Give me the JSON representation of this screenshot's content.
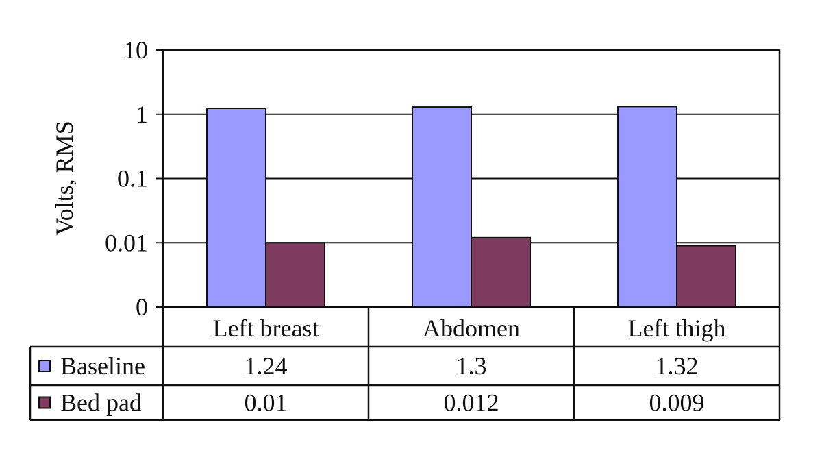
{
  "chart_data": {
    "type": "bar",
    "ylabel": "Volts, RMS",
    "yscale": "log",
    "ylim": [
      0.001,
      10
    ],
    "yticks": [
      {
        "value": 10,
        "label": "10"
      },
      {
        "value": 1,
        "label": "1"
      },
      {
        "value": 0.1,
        "label": "0.1"
      },
      {
        "value": 0.01,
        "label": "0.01"
      },
      {
        "value": 0.001,
        "label": "0"
      }
    ],
    "grid": true,
    "categories": [
      "Left breast",
      "Abdomen",
      "Left thigh"
    ],
    "series": [
      {
        "name": "Baseline",
        "color": "#9999ff",
        "values": [
          1.24,
          1.3,
          1.32
        ],
        "labels": [
          "1.24",
          "1.3",
          "1.32"
        ]
      },
      {
        "name": "Bed pad",
        "color": "#7f3b5f",
        "values": [
          0.01,
          0.012,
          0.009
        ],
        "labels": [
          "0.01",
          "0.012",
          "0.009"
        ]
      }
    ],
    "legend": "data-table"
  }
}
